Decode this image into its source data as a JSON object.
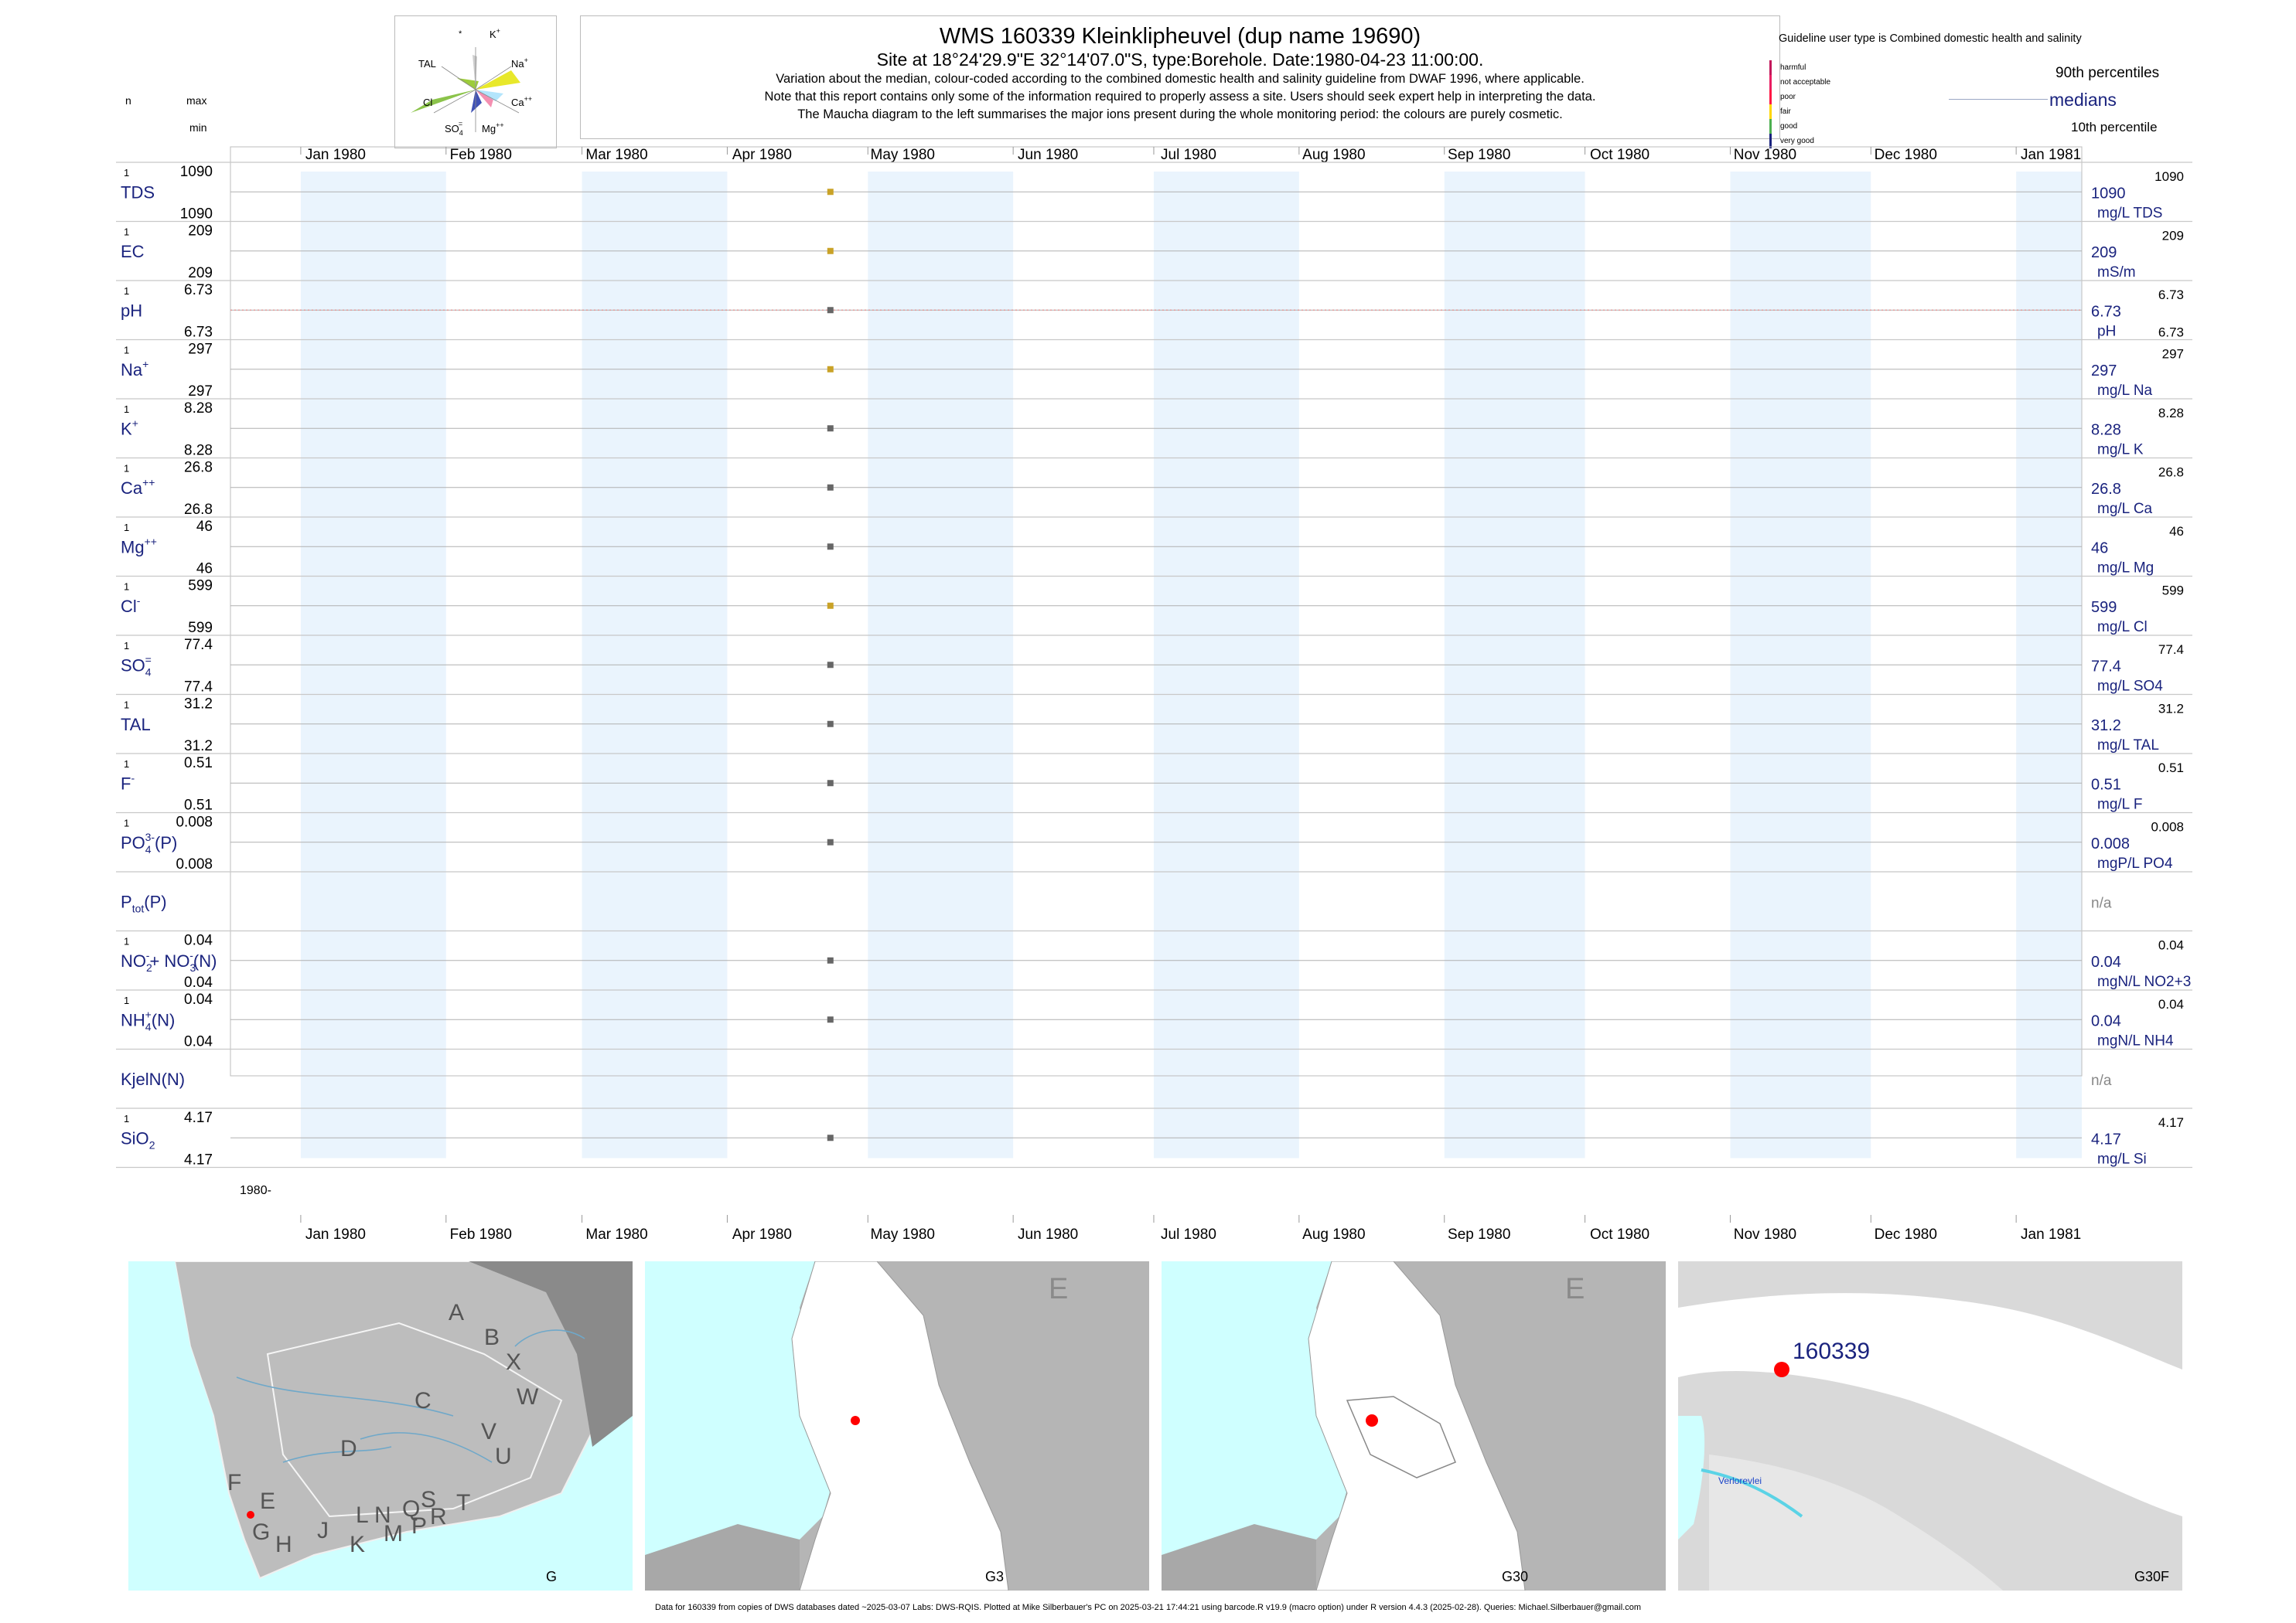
{
  "header": {
    "title": "WMS 160339  Kleinklipheuvel (dup name 19690)",
    "site_line": "Site at 18°24'29.9\"E 32°14'07.0\"S, type:Borehole. Date:1980-04-23 11:00:00.",
    "note_lines": [
      "Variation about the median,  colour-coded according to the combined domestic health and salinity guideline from DWAF 1996, where applicable.",
      "Note that this report contains only some of the information required to properly assess a site. Users should seek expert help in interpreting the data.",
      "The Maucha diagram to the left summarises the major ions present during the whole monitoring period: the colours are purely cosmetic."
    ]
  },
  "left_header": {
    "n": "n",
    "max": "max",
    "min": "min"
  },
  "maucha": {
    "labels": {
      "star": "*",
      "k": "K",
      "k_sup": "+",
      "tal": "TAL",
      "na": "Na",
      "na_sup": "+",
      "cl": "Cl",
      "ca": "Ca",
      "ca_sup": "++",
      "so4": "SO",
      "so4_sub": "4",
      "so4_sup": "=",
      "mg": "Mg",
      "mg_sup": "++"
    }
  },
  "legend": {
    "guideline": "Guideline user type is Combined domestic health and salinity",
    "classes": [
      {
        "label": "harmful",
        "color": "#c2185b"
      },
      {
        "label": "not acceptable",
        "color": "#e91e63"
      },
      {
        "label": "poor",
        "color": "#ff1744"
      },
      {
        "label": "fair",
        "color": "#ffd600"
      },
      {
        "label": "good",
        "color": "#4caf50"
      },
      {
        "label": "very good",
        "color": "#1a237e"
      }
    ],
    "p90": "90th percentiles",
    "medians": "medians",
    "p10": "10th percentile"
  },
  "chart_data": {
    "type": "scatter",
    "x_axis": {
      "ticks": [
        "Jan 1980",
        "Feb 1980",
        "Mar 1980",
        "Apr 1980",
        "May 1980",
        "Jun 1980",
        "Jul 1980",
        "Aug 1980",
        "Sep 1980",
        "Oct 1980",
        "Nov 1980",
        "Dec 1980",
        "Jan 1981"
      ],
      "range": [
        "1979-12-17",
        "1981-01-15"
      ],
      "year_label": "1980-"
    },
    "sample_date": "1980-04-23",
    "rows": [
      {
        "label": "TDS",
        "n": "1",
        "max": "1090",
        "min": "1090",
        "value": 1090,
        "median": "1090",
        "p90": "1090",
        "p10": "",
        "unit": "mg/L TDS",
        "color": "#c9a227"
      },
      {
        "label": "EC",
        "n": "1",
        "max": "209",
        "min": "209",
        "value": 209,
        "median": "209",
        "p90": "209",
        "p10": "",
        "unit": "mS/m",
        "color": "#c9a227"
      },
      {
        "label": "pH",
        "n": "1",
        "max": "6.73",
        "min": "6.73",
        "value": 6.73,
        "median": "6.73",
        "p90": "6.73",
        "p10": "6.73",
        "unit": "pH",
        "color": "#666666",
        "guideline_line": true
      },
      {
        "label": "Na",
        "sup": "+",
        "n": "1",
        "max": "297",
        "min": "297",
        "value": 297,
        "median": "297",
        "p90": "297",
        "p10": "",
        "unit": "mg/L Na",
        "color": "#c9a227"
      },
      {
        "label": "K",
        "sup": "+",
        "n": "1",
        "max": "8.28",
        "min": "8.28",
        "value": 8.28,
        "median": "8.28",
        "p90": "8.28",
        "p10": "",
        "unit": "mg/L K",
        "color": "#666666"
      },
      {
        "label": "Ca",
        "sup": "++",
        "n": "1",
        "max": "26.8",
        "min": "26.8",
        "value": 26.8,
        "median": "26.8",
        "p90": "26.8",
        "p10": "",
        "unit": "mg/L Ca",
        "color": "#666666"
      },
      {
        "label": "Mg",
        "sup": "++",
        "n": "1",
        "max": "46",
        "min": "46",
        "value": 46,
        "median": "46",
        "p90": "46",
        "p10": "",
        "unit": "mg/L Mg",
        "color": "#666666"
      },
      {
        "label": "Cl",
        "sup": "-",
        "n": "1",
        "max": "599",
        "min": "599",
        "value": 599,
        "median": "599",
        "p90": "599",
        "p10": "",
        "unit": "mg/L Cl",
        "color": "#c9a227"
      },
      {
        "label": "SO",
        "sub": "4",
        "sup": "=",
        "n": "1",
        "max": "77.4",
        "min": "77.4",
        "value": 77.4,
        "median": "77.4",
        "p90": "77.4",
        "p10": "",
        "unit": "mg/L SO4",
        "color": "#666666"
      },
      {
        "label": "TAL",
        "n": "1",
        "max": "31.2",
        "min": "31.2",
        "value": 31.2,
        "median": "31.2",
        "p90": "31.2",
        "p10": "",
        "unit": "mg/L TAL",
        "color": "#666666"
      },
      {
        "label": "F",
        "sup": "-",
        "n": "1",
        "max": "0.51",
        "min": "0.51",
        "value": 0.51,
        "median": "0.51",
        "p90": "0.51",
        "p10": "",
        "unit": "mg/L F",
        "color": "#666666"
      },
      {
        "label": "PO",
        "sub": "4",
        "sup": "3-",
        "suffix": "(P)",
        "n": "1",
        "max": "0.008",
        "min": "0.008",
        "value": 0.008,
        "median": "0.008",
        "p90": "0.008",
        "p10": "",
        "unit": "mgP/L PO4",
        "color": "#666666"
      },
      {
        "label": "P",
        "sub": "tot",
        "suffix": "(P)",
        "n": "",
        "max": "",
        "min": "",
        "value": null,
        "median": "n/a",
        "p90": "",
        "p10": "",
        "unit": "",
        "color": "#666666"
      },
      {
        "label": "NO",
        "sub": "2",
        "sup": "-",
        "extra": "+ NO",
        "extra_sub": "3",
        "extra_sup": "-",
        "suffix": "(N)",
        "n": "1",
        "max": "0.04",
        "min": "0.04",
        "value": 0.04,
        "median": "0.04",
        "p90": "0.04",
        "p10": "",
        "unit": "mgN/L NO2+3",
        "color": "#666666"
      },
      {
        "label": "NH",
        "sub": "4",
        "sup": "+",
        "suffix": "(N)",
        "n": "1",
        "max": "0.04",
        "min": "0.04",
        "value": 0.04,
        "median": "0.04",
        "p90": "0.04",
        "p10": "",
        "unit": "mgN/L NH4",
        "color": "#666666"
      },
      {
        "label": "KjelN(N)",
        "n": "",
        "max": "",
        "min": "",
        "value": null,
        "median": "n/a",
        "p90": "",
        "p10": "",
        "unit": "",
        "color": "#666666"
      },
      {
        "label": "SiO",
        "sub": "2",
        "n": "1",
        "max": "4.17",
        "min": "4.17",
        "value": 4.17,
        "median": "4.17",
        "p90": "4.17",
        "p10": "",
        "unit": "mg/L Si",
        "color": "#666666"
      }
    ]
  },
  "maps": {
    "g": {
      "caption": "G",
      "letters": [
        "A",
        "B",
        "X",
        "W",
        "C",
        "V",
        "U",
        "D",
        "T",
        "F",
        "E",
        "G",
        "H",
        "J",
        "K",
        "L",
        "N",
        "M",
        "Q",
        "P",
        "S",
        "R"
      ]
    },
    "g3": {
      "caption": "G3",
      "region": "E"
    },
    "g30": {
      "caption": "G30",
      "region": "E"
    },
    "g30f": {
      "caption": "G30F",
      "site_id": "160339",
      "place": "Verlorevlei"
    }
  },
  "footer": "Data for 160339 from copies of DWS databases dated ~2025-03-07 Labs: DWS-RQIS. Plotted at Mike Silberbauer's PC on 2025-03-21 17:44:21 using barcode.R v19.9 (macro option) under R version 4.4.3 (2025-02-28). Queries: Michael.Silberbauer@gmail.com"
}
